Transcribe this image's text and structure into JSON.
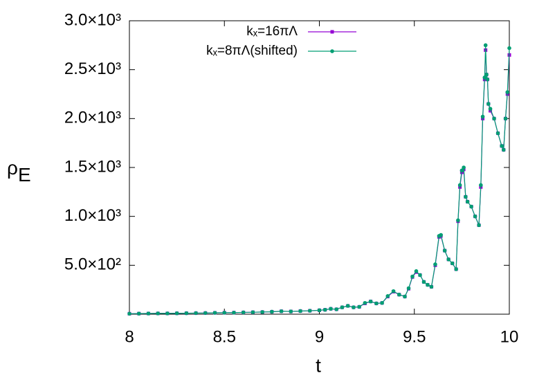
{
  "chart_data": {
    "type": "line",
    "xlabel": "t",
    "ylabel": "ρE",
    "x": [
      8.0,
      8.05,
      8.1,
      8.15,
      8.2,
      8.25,
      8.3,
      8.35,
      8.4,
      8.45,
      8.5,
      8.55,
      8.6,
      8.65,
      8.7,
      8.75,
      8.8,
      8.85,
      8.9,
      8.95,
      9.0,
      9.03,
      9.06,
      9.09,
      9.12,
      9.15,
      9.18,
      9.21,
      9.24,
      9.27,
      9.3,
      9.33,
      9.36,
      9.39,
      9.42,
      9.45,
      9.47,
      9.49,
      9.51,
      9.53,
      9.55,
      9.57,
      9.59,
      9.61,
      9.63,
      9.64,
      9.66,
      9.68,
      9.7,
      9.72,
      9.73,
      9.74,
      9.75,
      9.76,
      9.77,
      9.78,
      9.8,
      9.82,
      9.84,
      9.85,
      9.86,
      9.87,
      9.875,
      9.88,
      9.885,
      9.89,
      9.9,
      9.92,
      9.94,
      9.96,
      9.97,
      9.98,
      9.99,
      10.0
    ],
    "series": [
      {
        "name": "kₓ=16πΛ",
        "color": "#9400d3",
        "values": [
          5,
          6,
          7,
          8,
          8,
          9,
          10,
          11,
          12,
          14,
          15,
          16,
          18,
          20,
          22,
          25,
          30,
          28,
          32,
          35,
          40,
          45,
          55,
          50,
          70,
          85,
          70,
          75,
          110,
          130,
          110,
          115,
          180,
          230,
          200,
          180,
          260,
          380,
          430,
          400,
          330,
          300,
          280,
          500,
          790,
          800,
          650,
          560,
          520,
          460,
          950,
          1300,
          1450,
          1480,
          1200,
          1150,
          1100,
          1000,
          910,
          1300,
          2000,
          2400,
          2700,
          2450,
          2400,
          2150,
          2080,
          2000,
          1850,
          1720,
          1680,
          2000,
          2250,
          2650
        ]
      },
      {
        "name": "kₓ=8πΛ(shifted)",
        "color": "#009e73",
        "values": [
          5,
          6,
          7,
          8,
          8,
          9,
          10,
          11,
          12,
          14,
          15,
          16,
          18,
          20,
          22,
          25,
          30,
          28,
          32,
          35,
          40,
          45,
          55,
          50,
          70,
          85,
          70,
          75,
          115,
          130,
          110,
          115,
          185,
          235,
          200,
          180,
          265,
          385,
          440,
          400,
          330,
          300,
          280,
          510,
          800,
          810,
          650,
          560,
          520,
          460,
          960,
          1320,
          1470,
          1500,
          1200,
          1150,
          1100,
          1000,
          910,
          1320,
          2020,
          2420,
          2750,
          2450,
          2400,
          2150,
          2100,
          2000,
          1850,
          1720,
          1680,
          2000,
          2270,
          2720
        ]
      }
    ],
    "xlim": [
      8,
      10
    ],
    "ylim": [
      0,
      3000
    ],
    "xticks": [
      8,
      8.5,
      9,
      9.5,
      10
    ],
    "yticks": [
      {
        "value": 500,
        "label": "5.0×10²"
      },
      {
        "value": 1000,
        "label": "1.0×10³"
      },
      {
        "value": 1500,
        "label": "1.5×10³"
      },
      {
        "value": 2000,
        "label": "2.0×10³"
      },
      {
        "value": 2500,
        "label": "2.5×10³"
      },
      {
        "value": 3000,
        "label": "3.0×10³"
      }
    ],
    "legend": "top-right"
  }
}
